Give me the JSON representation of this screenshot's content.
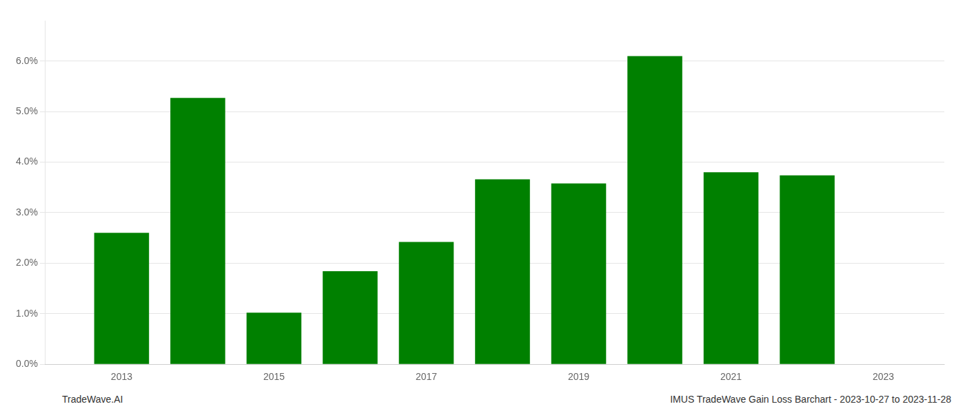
{
  "chart_data": {
    "type": "bar",
    "x": [
      2013,
      2014,
      2015,
      2016,
      2017,
      2018,
      2019,
      2020,
      2021,
      2022
    ],
    "values": [
      2.6,
      5.27,
      1.02,
      1.84,
      2.42,
      3.66,
      3.58,
      6.1,
      3.8,
      3.74
    ],
    "color": "#008000",
    "xlim": [
      2012.0,
      2023.8
    ],
    "xticks": [
      2013,
      2015,
      2017,
      2019,
      2021,
      2023
    ],
    "ylim": [
      0.0,
      6.8
    ],
    "yticks": [
      {
        "value": 0.0,
        "label": "0.0%"
      },
      {
        "value": 1.0,
        "label": "1.0%"
      },
      {
        "value": 2.0,
        "label": "2.0%"
      },
      {
        "value": 3.0,
        "label": "3.0%"
      },
      {
        "value": 4.0,
        "label": "4.0%"
      },
      {
        "value": 5.0,
        "label": "5.0%"
      },
      {
        "value": 6.0,
        "label": "6.0%"
      }
    ],
    "grid": true,
    "annotations": [
      "TradeWave.AI",
      "IMUS TradeWave Gain Loss Barchart - 2023-10-27 to 2023-11-28"
    ]
  }
}
